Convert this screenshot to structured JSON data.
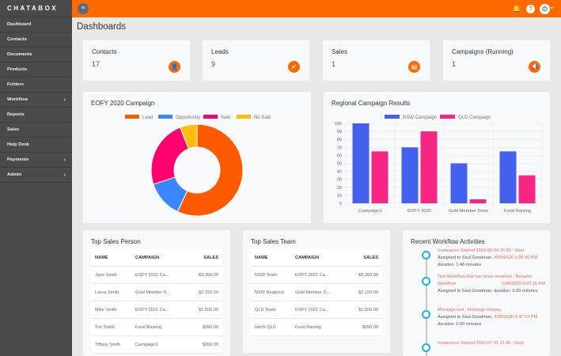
{
  "brand": "CHATABOX",
  "sidebar": {
    "items": [
      {
        "label": "Dashboard",
        "has_submenu": false
      },
      {
        "label": "Contacts",
        "has_submenu": false
      },
      {
        "label": "Documents",
        "has_submenu": false
      },
      {
        "label": "Products",
        "has_submenu": false
      },
      {
        "label": "Folders",
        "has_submenu": false
      },
      {
        "label": "Workflow",
        "has_submenu": true
      },
      {
        "label": "Reports",
        "has_submenu": false
      },
      {
        "label": "Sales",
        "has_submenu": false
      },
      {
        "label": "Help Desk",
        "has_submenu": false
      },
      {
        "label": "Payments",
        "has_submenu": true
      },
      {
        "label": "Admin",
        "has_submenu": true
      }
    ]
  },
  "topbar": {
    "menu_icon": "≡",
    "bell_icon": "🔔",
    "help_icon": "?",
    "user_icon": "⏻",
    "accent": "#ff6a00"
  },
  "page_title": "Dashboards",
  "stats": [
    {
      "label": "Contacts",
      "value": "17",
      "icon": "user-icon",
      "glyph": "👤"
    },
    {
      "label": "Leads",
      "value": "9",
      "icon": "user-check-icon",
      "glyph": "✔"
    },
    {
      "label": "Sales",
      "value": "1",
      "icon": "document-icon",
      "glyph": "▤"
    },
    {
      "label": "Campaigns (Running)",
      "value": "1",
      "icon": "megaphone-icon",
      "glyph": "📢"
    }
  ],
  "chart_data": [
    {
      "type": "pie",
      "variant": "doughnut",
      "title": "EOFY 2020 Campaign",
      "legend_position": "top",
      "categories": [
        "Lead",
        "Opportunity",
        "Sale",
        "No Sale"
      ],
      "values": [
        57,
        13,
        24,
        6
      ],
      "colors": [
        "#ff5a00",
        "#3a86ff",
        "#ff006e",
        "#ffbe0b"
      ]
    },
    {
      "type": "bar",
      "title": "Regional Campaign Results",
      "legend_position": "top",
      "categories": [
        "Campaign1",
        "EOFY 2020",
        "Gold Member Drive",
        "Fund Raising"
      ],
      "series": [
        {
          "name": "NSW Campaign",
          "values": [
            100,
            70,
            50,
            65
          ],
          "color": "#4361ee"
        },
        {
          "name": "QLD Campaign",
          "values": [
            65,
            90,
            5,
            35
          ],
          "color": "#f72585"
        }
      ],
      "ylim": [
        0,
        100
      ],
      "yticks": [
        0,
        10,
        20,
        30,
        40,
        50,
        60,
        70,
        80,
        90,
        100
      ],
      "grid": true
    }
  ],
  "top_sales_person": {
    "title": "Top Sales Person",
    "headers": [
      "NAME",
      "CAMPAIGN",
      "SALES"
    ],
    "rows": [
      [
        "Jane Smith",
        "EOFY 2021 Ca...",
        "$3,350.00"
      ],
      [
        "Laura Smith",
        "Gold Member D...",
        "$2,150.00"
      ],
      [
        "Mike Smith",
        "EOFY 2021 Ca...",
        "$1,500.00"
      ],
      [
        "Tim Smith",
        "Fund Raising",
        "$350.00"
      ],
      [
        "Tiffany Smith",
        "Campaign1",
        "$350.00"
      ]
    ]
  },
  "top_sales_team": {
    "title": "Top Sales Team",
    "headers": [
      "NAME",
      "CAMPAIGN",
      "SALES"
    ],
    "rows": [
      [
        "NSW Team",
        "EOFY 2021 Ca...",
        "$3,350.00"
      ],
      [
        "NSW Regional",
        "Gold Member D...",
        "$2,150.00"
      ],
      [
        "QLD Team",
        "EOFY 2021 Ca...",
        "$1,500.00"
      ],
      [
        "North QLD",
        "Fund Raising",
        "$350.00"
      ]
    ]
  },
  "workflow": {
    "title": "Recent Workflow Activities",
    "items": [
      {
        "title": "Instanance Started 2020-09-04 15:05 : Start",
        "assigned": "Assigned to Saul Goodman,",
        "date": "4/09/2020 3:05:40 PM",
        "duration": "duration: 1.46 minutes"
      },
      {
        "title": "Test Workflow that has been renamed : Rename Workflow",
        "assigned": "Assigned to Saul Goodman, duration: 0.00 minutes",
        "date": "5/08/2020 3:07:15 PM",
        "duration": ""
      },
      {
        "title": "Message test : Message Display",
        "assigned": "Assigned to Saul Goodman,",
        "date": "4/08/2020 3:47:53 PM",
        "duration": "duration: 0.00 minutes"
      },
      {
        "title": "Instanance Started 2020-07-31 11:45 : Start",
        "assigned": "",
        "date": "",
        "duration": ""
      }
    ]
  }
}
